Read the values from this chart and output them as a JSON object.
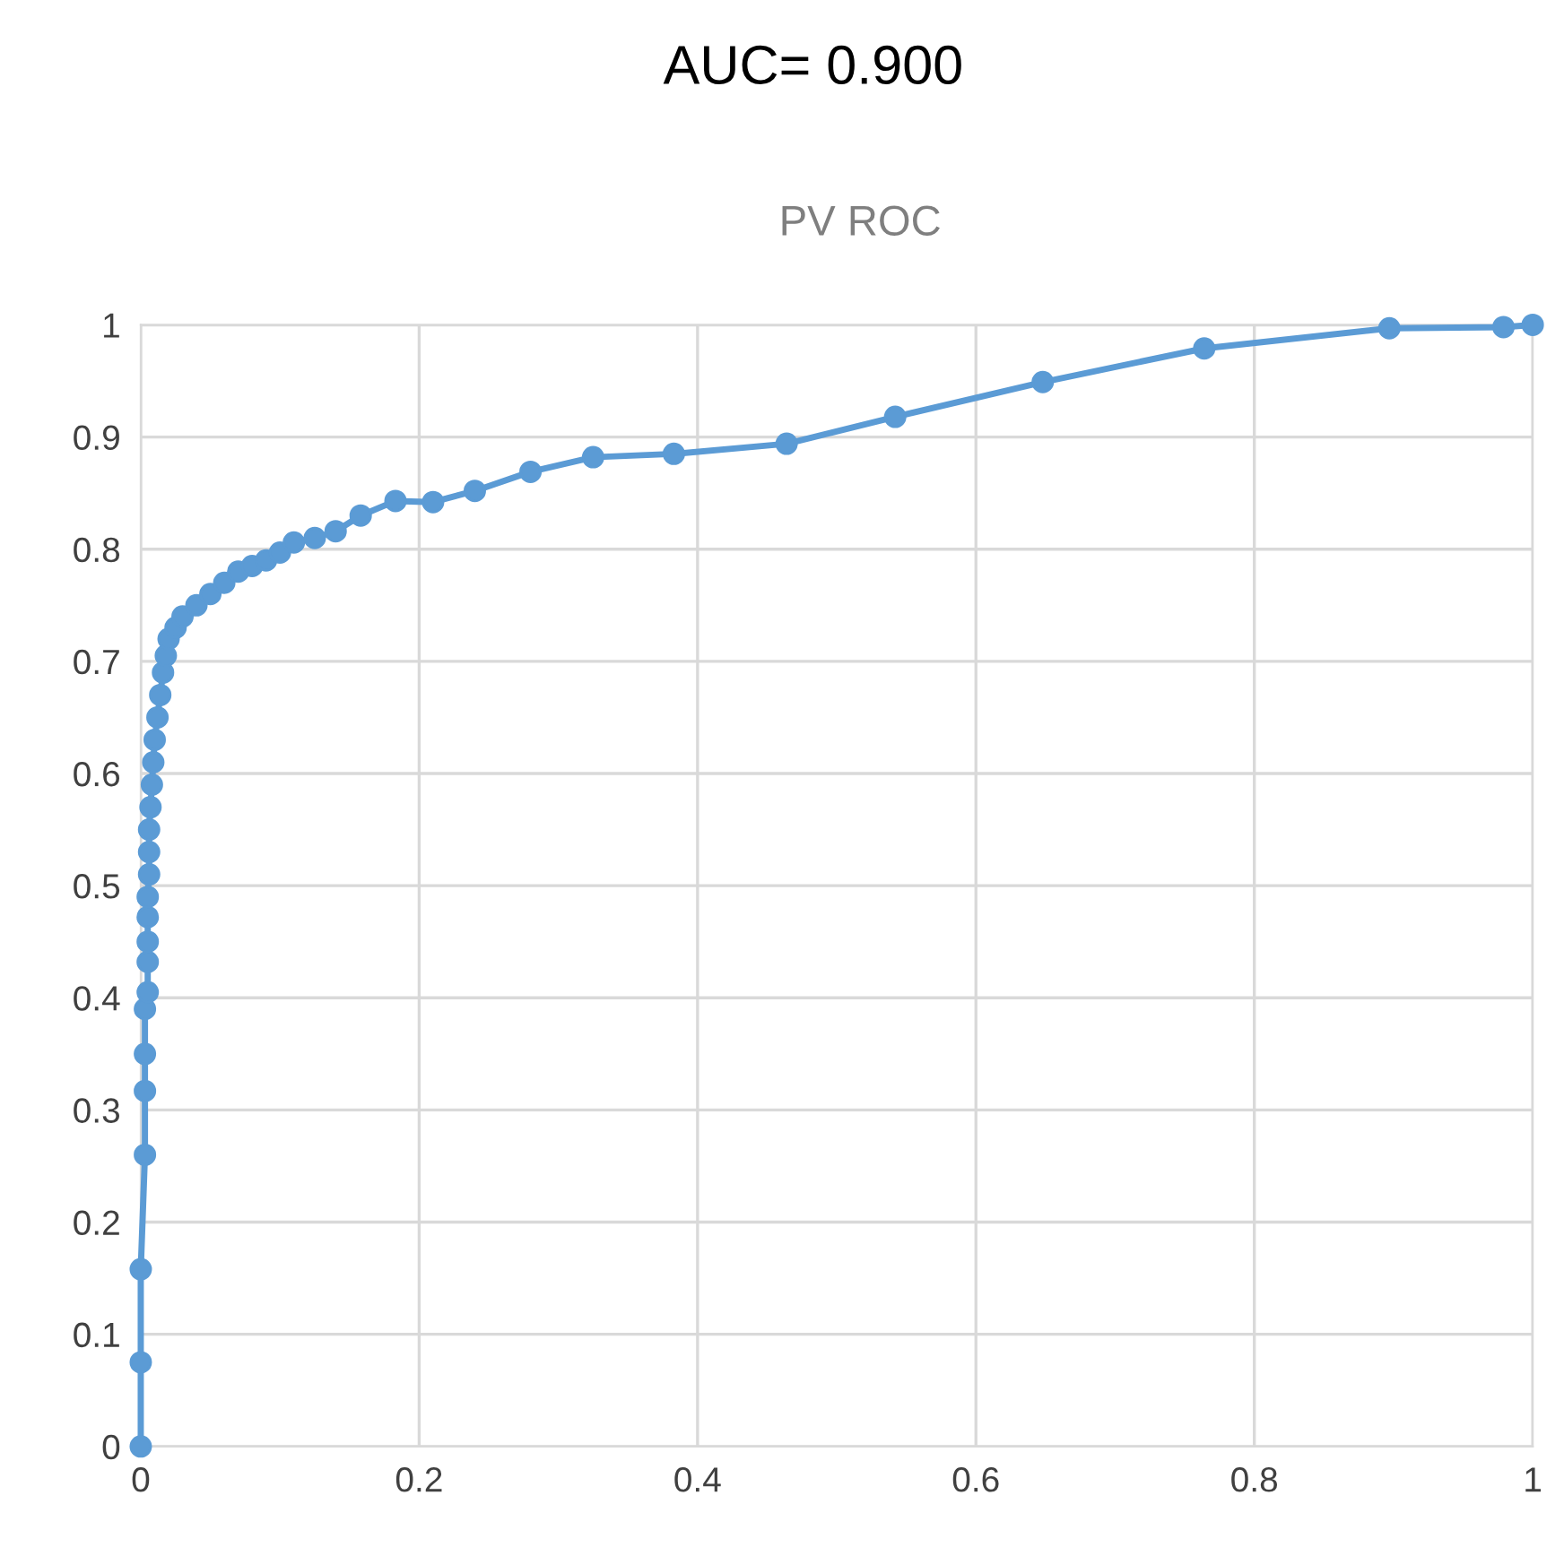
{
  "chart_data": {
    "type": "line",
    "title": "AUC= 0.900",
    "subtitle": "PV ROC",
    "x": [
      0,
      0,
      0,
      0.003,
      0.003,
      0.003,
      0.003,
      0.005,
      0.005,
      0.005,
      0.005,
      0.005,
      0.006,
      0.006,
      0.006,
      0.007,
      0.008,
      0.009,
      0.01,
      0.012,
      0.014,
      0.016,
      0.018,
      0.02,
      0.025,
      0.03,
      0.04,
      0.05,
      0.06,
      0.07,
      0.08,
      0.09,
      0.1,
      0.11,
      0.125,
      0.14,
      0.158,
      0.183,
      0.21,
      0.24,
      0.28,
      0.325,
      0.383,
      0.464,
      0.542,
      0.648,
      0.764,
      0.897,
      0.979,
      1
    ],
    "series": [
      {
        "color": "#5b9bd5",
        "values": [
          0,
          0.075,
          0.158,
          0.26,
          0.317,
          0.35,
          0.39,
          0.405,
          0.432,
          0.45,
          0.472,
          0.49,
          0.51,
          0.53,
          0.55,
          0.57,
          0.59,
          0.61,
          0.63,
          0.65,
          0.67,
          0.69,
          0.705,
          0.72,
          0.73,
          0.74,
          0.75,
          0.76,
          0.77,
          0.78,
          0.785,
          0.79,
          0.797,
          0.806,
          0.81,
          0.816,
          0.83,
          0.843,
          0.842,
          0.852,
          0.869,
          0.882,
          0.885,
          0.894,
          0.918,
          0.949,
          0.979,
          0.997,
          0.998,
          1
        ]
      }
    ],
    "xlim": [
      0,
      1
    ],
    "ylim": [
      0,
      1
    ],
    "xticks": [
      0,
      0.2,
      0.4,
      0.6,
      0.8,
      1
    ],
    "yticks": [
      0,
      0.1,
      0.2,
      0.3,
      0.4,
      0.5,
      0.6,
      0.7,
      0.8,
      0.9,
      1
    ],
    "grid": true,
    "marker": "circle",
    "line_style": "solid"
  }
}
